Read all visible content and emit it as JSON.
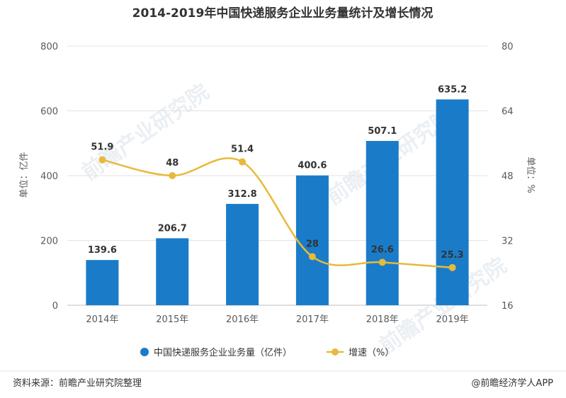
{
  "chart_data": {
    "type": "bar",
    "title": "2014-2019年中国快递服务企业业务量统计及增长情况",
    "categories": [
      "2014年",
      "2015年",
      "2016年",
      "2017年",
      "2018年",
      "2019年"
    ],
    "series": [
      {
        "name": "中国快递服务企业业务量（亿件）",
        "type": "bar",
        "axis": "left",
        "color": "#1a7cc9",
        "values": [
          139.6,
          206.7,
          312.8,
          400.6,
          507.1,
          635.2
        ],
        "labels": [
          "139.6",
          "206.7",
          "312.8",
          "400.6",
          "507.1",
          "635.2"
        ]
      },
      {
        "name": "增速（%）",
        "type": "line",
        "axis": "right",
        "color": "#e8b93a",
        "values": [
          51.9,
          48,
          51.4,
          28,
          26.6,
          25.3
        ],
        "labels": [
          "51.9",
          "48",
          "51.4",
          "28",
          "26.6",
          "25.3"
        ]
      }
    ],
    "ylabel": "单位：亿件",
    "y2label": "单位：%",
    "ylim": [
      0,
      800
    ],
    "y2lim": [
      16,
      80
    ],
    "yticks": [
      "0",
      "200",
      "400",
      "600",
      "800"
    ],
    "y2ticks": [
      "16",
      "32",
      "48",
      "64",
      "80"
    ],
    "grid": true,
    "legend_position": "bottom"
  },
  "watermark": {
    "text": "前瞻产业研究院"
  },
  "footer": {
    "source": "资料来源：前瞻产业研究院整理",
    "credit": "@前瞻经济学人APP"
  }
}
